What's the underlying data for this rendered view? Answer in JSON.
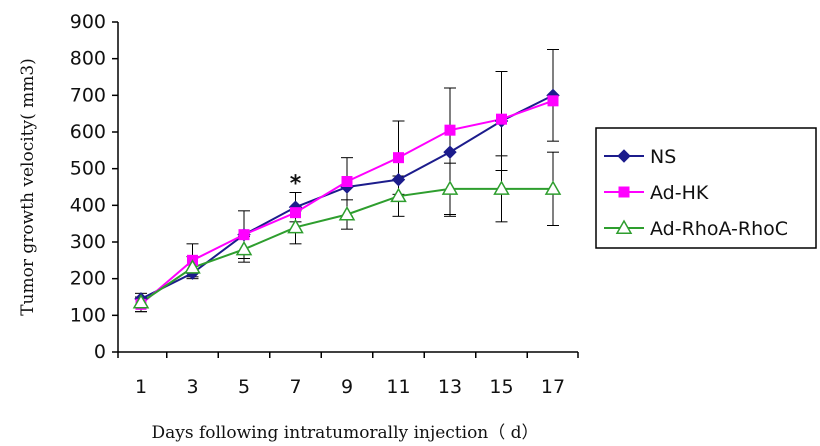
{
  "chart_data": {
    "type": "line",
    "title": "",
    "xlabel": "Days following intratumorally injection（ d）",
    "ylabel": "Tumor growth velocity( mm3)",
    "x": [
      1,
      3,
      5,
      7,
      9,
      11,
      13,
      15,
      17
    ],
    "xticks": [
      "1",
      "3",
      "5",
      "7",
      "9",
      "11",
      "13",
      "15",
      "17"
    ],
    "yticks": [
      "0",
      "100",
      "200",
      "300",
      "400",
      "500",
      "600",
      "700",
      "800",
      "900"
    ],
    "ylim": [
      0,
      900
    ],
    "grid": false,
    "legend_position": "right",
    "annotation": {
      "text": "*",
      "x": 7
    },
    "series": [
      {
        "name": "NS",
        "color": "#1c1c8c",
        "marker": "diamond",
        "values": [
          145,
          215,
          320,
          395,
          450,
          470,
          545,
          630,
          700
        ],
        "errors": [
          0,
          0,
          0,
          40,
          80,
          0,
          175,
          135,
          125
        ]
      },
      {
        "name": "Ad-HK",
        "color": "#ff00ff",
        "marker": "square",
        "values": [
          130,
          250,
          320,
          380,
          465,
          530,
          605,
          635,
          685
        ],
        "errors": [
          20,
          45,
          65,
          0,
          0,
          100,
          0,
          0,
          0
        ]
      },
      {
        "name": "Ad-RhoA-RhoC",
        "color": "#2e9e2e",
        "marker": "triangle-open",
        "values": [
          135,
          230,
          280,
          340,
          375,
          425,
          445,
          445,
          445
        ],
        "errors": [
          25,
          30,
          35,
          45,
          40,
          55,
          70,
          90,
          100
        ]
      }
    ]
  }
}
